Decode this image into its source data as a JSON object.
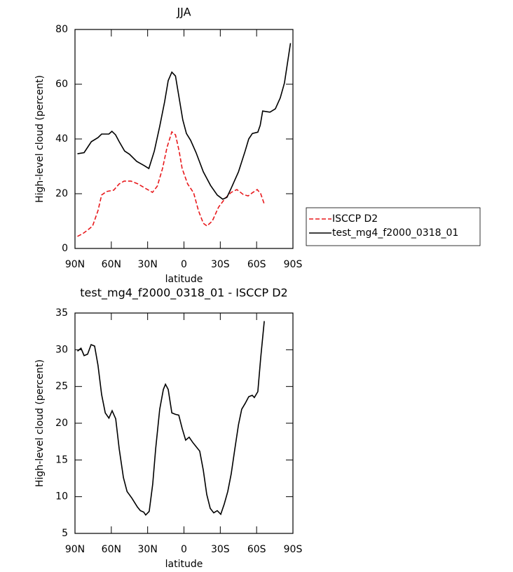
{
  "chart_data": [
    {
      "type": "line",
      "title": "JJA",
      "x_label": "latitude",
      "y_label": "High-level cloud (percent)",
      "xlim": [
        90,
        -90
      ],
      "ylim": [
        0,
        80
      ],
      "xticks": [
        {
          "value": 90,
          "label": "90N"
        },
        {
          "value": 60,
          "label": "60N"
        },
        {
          "value": 30,
          "label": "30N"
        },
        0,
        {
          "value": -30,
          "label": "30S"
        },
        {
          "value": -60,
          "label": "60S"
        },
        {
          "value": -90,
          "label": "90S"
        }
      ],
      "yticks": [
        0,
        20,
        40,
        60,
        80
      ],
      "legend": "right",
      "series": [
        {
          "name": "ISCCP D2",
          "color": "#e8191c",
          "line_style": "dashed",
          "x": [
            88,
            83.6,
            79.6,
            75.5,
            71,
            68,
            64,
            58,
            53.5,
            49.5,
            43.7,
            38,
            32,
            26,
            22,
            17.7,
            14,
            10,
            7,
            4,
            1.5,
            -3,
            -8,
            -12,
            -16,
            -19,
            -23.4,
            -28.6,
            -34.4,
            -39,
            -43.7,
            -49,
            -53,
            -56.4,
            -60.5,
            -63.4,
            -66.3
          ],
          "values": [
            4.4,
            5.4,
            6.7,
            8.2,
            13.8,
            19.5,
            20.8,
            21.3,
            23.6,
            24.6,
            24.6,
            23.6,
            22,
            20.5,
            22.8,
            29.2,
            36.9,
            42.6,
            41.5,
            35.6,
            29.2,
            23.6,
            20.3,
            13.8,
            9.2,
            8.2,
            10,
            15.1,
            18.5,
            20.5,
            21.5,
            19.7,
            19.2,
            20.3,
            21.5,
            20,
            16.2
          ]
        },
        {
          "name": "test_mg4_f2000_0318_01",
          "color": "#000000",
          "line_style": "solid",
          "x": [
            88,
            82.5,
            76.5,
            71,
            68,
            62,
            59.5,
            56.5,
            53.5,
            49,
            45,
            39,
            33,
            29,
            24.5,
            20,
            16,
            13,
            10,
            7,
            4,
            1,
            -2,
            -5.5,
            -10,
            -16,
            -22,
            -27.5,
            -32,
            -35.5,
            -39,
            -45,
            -50.5,
            -53.5,
            -56.5,
            -61,
            -63,
            -65,
            -71,
            -75.5,
            -79.5,
            -83,
            -88
          ],
          "values": [
            34.6,
            35,
            39,
            40.5,
            41.8,
            41.8,
            42.8,
            41.5,
            39,
            35.6,
            34.4,
            31.8,
            30.3,
            29.2,
            35.6,
            44.6,
            53.6,
            61.3,
            64.4,
            63,
            55,
            47,
            42,
            39.5,
            35,
            28,
            23,
            19.5,
            18,
            18.7,
            22,
            28,
            35.6,
            40,
            42,
            42.5,
            45,
            50.2,
            49.8,
            51,
            55,
            60.5,
            75
          ]
        }
      ]
    },
    {
      "type": "line",
      "title": "test_mg4_f2000_0318_01 - ISCCP D2",
      "x_label": "latitude",
      "y_label": "High-level cloud (percent)",
      "xlim": [
        90,
        -90
      ],
      "ylim": [
        5,
        35
      ],
      "xticks": [
        {
          "value": 90,
          "label": "90N"
        },
        {
          "value": 60,
          "label": "60N"
        },
        {
          "value": 30,
          "label": "30N"
        },
        0,
        {
          "value": -30,
          "label": "30S"
        },
        {
          "value": -60,
          "label": "60S"
        },
        {
          "value": -90,
          "label": "90S"
        }
      ],
      "yticks": [
        5,
        10,
        15,
        20,
        25,
        30,
        35
      ],
      "series": [
        {
          "color": "#000000",
          "line_style": "solid",
          "x": [
            88,
            85,
            82.5,
            79.6,
            76.7,
            73.8,
            71,
            68,
            65,
            62,
            59.3,
            56.4,
            53.5,
            50,
            47,
            43,
            38.5,
            36,
            33.3,
            31.6,
            28.7,
            25.8,
            23.4,
            20,
            17,
            15.3,
            13,
            10,
            7,
            4.3,
            1.5,
            -1.4,
            -4.3,
            -7.2,
            -13,
            -16,
            -18.8,
            -21.7,
            -24.6,
            -27.5,
            -30.4,
            -33.3,
            -36.2,
            -39,
            -42,
            -45,
            -47.7,
            -50.6,
            -53.5,
            -56.4,
            -58.1,
            -61,
            -63.4,
            -66.3
          ],
          "values": [
            29.8,
            30.2,
            29.2,
            29.4,
            30.7,
            30.5,
            27.9,
            23.9,
            21.4,
            20.7,
            21.7,
            20.6,
            16.5,
            12.6,
            10.7,
            9.8,
            8.6,
            8.1,
            7.9,
            7.5,
            8,
            11.7,
            16.5,
            21.9,
            24.6,
            25.3,
            24.6,
            21.4,
            21.2,
            21.1,
            19.3,
            17.7,
            18.1,
            17.4,
            16.2,
            13.6,
            10.3,
            8.4,
            7.8,
            8.1,
            7.6,
            9,
            10.7,
            13.1,
            16.5,
            19.8,
            21.9,
            22.7,
            23.6,
            23.8,
            23.5,
            24.3,
            28.9,
            33.9
          ]
        }
      ]
    }
  ]
}
